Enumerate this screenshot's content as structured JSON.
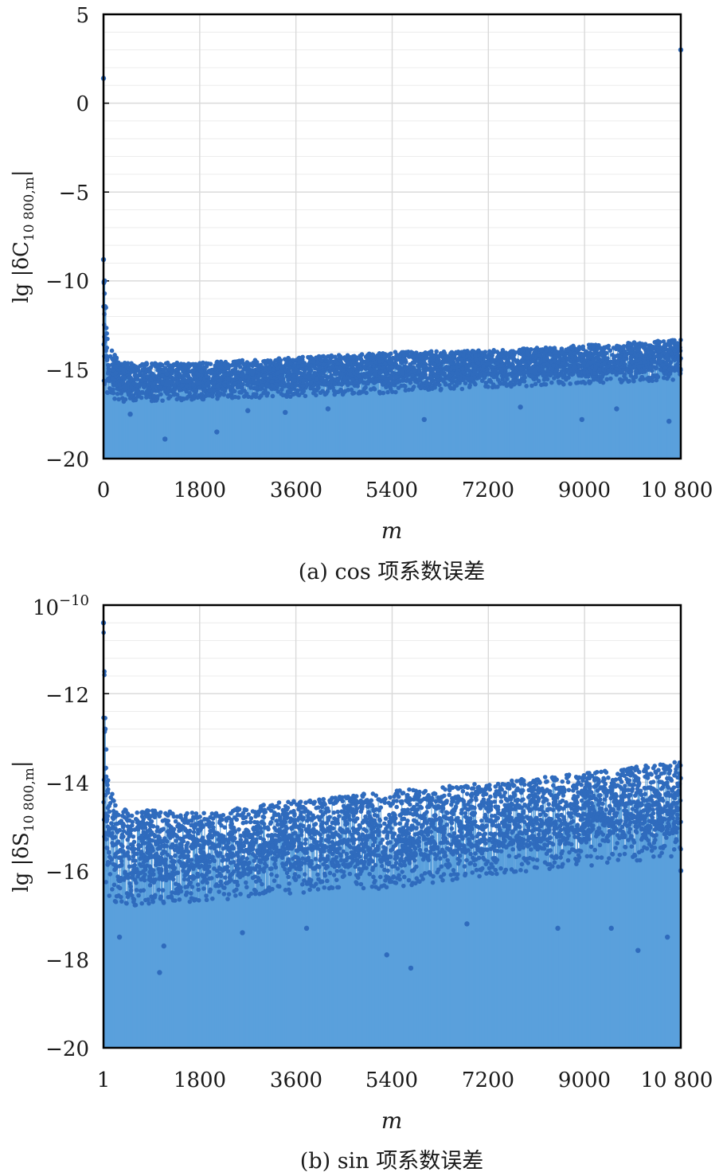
{
  "colors": {
    "series": "#2f6bbd",
    "stem": "#5aa0dc",
    "grid": "#d9d9d9",
    "axis": "#000000"
  },
  "panels": [
    {
      "caption": "(a) cos 项系数误差",
      "xlabel": "m",
      "ylabel": {
        "prefix": "lg |δC",
        "sub": "10 800,m",
        "suffix": "|"
      },
      "ytick_labels": [
        "5",
        "0",
        "−5",
        "−10",
        "−15",
        "−20"
      ],
      "xtick_labels": [
        "0",
        "1800",
        "3600",
        "5400",
        "7200",
        "9000",
        "10 800"
      ]
    },
    {
      "caption": "(b) sin 项系数误差",
      "xlabel": "m",
      "ylabel": {
        "prefix": "lg |δS",
        "sub": "10 800,m",
        "suffix": "|"
      },
      "ytick_labels": [
        "−10",
        "−12",
        "−14",
        "−16",
        "−18",
        "−20"
      ],
      "ytop_label": {
        "base": "10",
        "exp": "−10"
      },
      "xtick_labels": [
        "1",
        "1800",
        "3600",
        "5400",
        "7200",
        "9000",
        "10 800"
      ]
    }
  ],
  "chart_data": [
    {
      "type": "scatter",
      "style": "stem",
      "xlabel": "m",
      "ylabel": "lg |δC10 800,m|",
      "xlim": [
        0,
        10800
      ],
      "ylim": [
        -20,
        5
      ],
      "xticks": [
        0,
        1800,
        3600,
        5400,
        7200,
        9000,
        10800
      ],
      "yticks": [
        5,
        0,
        -5,
        -10,
        -15,
        -20
      ],
      "grid": true,
      "band_description": {
        "x": [
          0,
          50,
          100,
          300,
          1800,
          3600,
          5400,
          7200,
          9000,
          10800
        ],
        "upper": [
          -8.8,
          -12.0,
          -13.5,
          -14.6,
          -14.6,
          -14.3,
          -14.0,
          -13.9,
          -13.6,
          -13.3
        ],
        "lower": [
          -16.0,
          -16.2,
          -16.5,
          -16.8,
          -16.7,
          -16.5,
          -16.3,
          -16.0,
          -15.8,
          -15.6
        ]
      },
      "points": [
        {
          "x": 0,
          "y": 1.4
        },
        {
          "x": 10800,
          "y": 3.0
        },
        {
          "x": 0,
          "y": -8.8
        },
        {
          "x": 20,
          "y": -10.0
        },
        {
          "x": 40,
          "y": -11.5
        },
        {
          "x": 1150,
          "y": -18.9
        },
        {
          "x": 2120,
          "y": -18.5
        },
        {
          "x": 6000,
          "y": -17.8
        },
        {
          "x": 8950,
          "y": -17.8
        },
        {
          "x": 10580,
          "y": -17.9
        },
        {
          "x": 500,
          "y": -17.5
        },
        {
          "x": 2700,
          "y": -17.3
        },
        {
          "x": 3400,
          "y": -17.4
        },
        {
          "x": 4200,
          "y": -17.2
        },
        {
          "x": 7800,
          "y": -17.1
        },
        {
          "x": 9600,
          "y": -17.2
        }
      ]
    },
    {
      "type": "scatter",
      "style": "stem",
      "xlabel": "m",
      "ylabel": "lg |δS10 800,m|",
      "xlim": [
        1,
        10800
      ],
      "ylim": [
        -20,
        -10
      ],
      "xticks": [
        1,
        1800,
        3600,
        5400,
        7200,
        9000,
        10800
      ],
      "yticks": [
        -10,
        -12,
        -14,
        -16,
        -18,
        -20
      ],
      "grid": true,
      "band_description": {
        "x": [
          1,
          50,
          100,
          300,
          1800,
          3600,
          5400,
          7200,
          9000,
          10800
        ],
        "upper": [
          -10.4,
          -13.0,
          -14.1,
          -14.6,
          -14.7,
          -14.4,
          -14.2,
          -14.0,
          -13.8,
          -13.5
        ],
        "lower": [
          -16.2,
          -16.4,
          -16.6,
          -16.8,
          -16.7,
          -16.5,
          -16.4,
          -16.1,
          -15.9,
          -15.7
        ]
      },
      "points": [
        {
          "x": 1,
          "y": -10.4
        },
        {
          "x": 30,
          "y": -12.8
        },
        {
          "x": 1050,
          "y": -18.3
        },
        {
          "x": 1130,
          "y": -17.7
        },
        {
          "x": 5300,
          "y": -17.9
        },
        {
          "x": 5750,
          "y": -18.2
        },
        {
          "x": 10000,
          "y": -17.8
        },
        {
          "x": 10550,
          "y": -17.5
        },
        {
          "x": 300,
          "y": -17.5
        },
        {
          "x": 2600,
          "y": -17.4
        },
        {
          "x": 3800,
          "y": -17.3
        },
        {
          "x": 6800,
          "y": -17.2
        },
        {
          "x": 8500,
          "y": -17.3
        },
        {
          "x": 9500,
          "y": -17.3
        },
        {
          "x": 10800,
          "y": -16.0
        }
      ]
    }
  ]
}
